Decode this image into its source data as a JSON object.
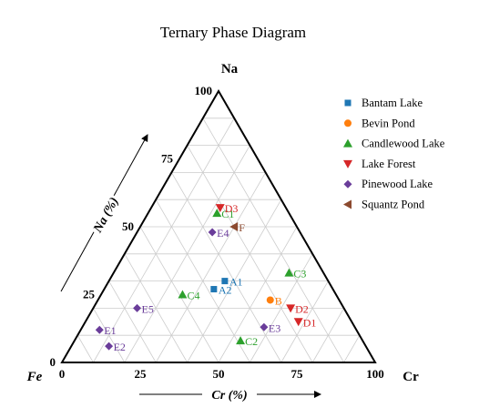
{
  "chart_data": {
    "type": "scatter",
    "subtype": "ternary",
    "title": "Ternary Phase Diagram",
    "corner_labels": {
      "top": "Na",
      "left": "Fe",
      "right": "Cr"
    },
    "axis_titles": {
      "left": "Na (%)",
      "bottom": "Cr (%)"
    },
    "left_ticks": [
      "0",
      "25",
      "50",
      "75",
      "100"
    ],
    "bottom_ticks": [
      "0",
      "25",
      "50",
      "75",
      "100"
    ],
    "grid": true,
    "grid_step": 10,
    "legend_position": "top-right",
    "series": [
      {
        "name": "Bantam Lake",
        "color": "#1f77b4",
        "marker": "square",
        "points": [
          {
            "label": "A1",
            "cr": 37,
            "na": 30
          },
          {
            "label": "A2",
            "cr": 35,
            "na": 27
          }
        ]
      },
      {
        "name": "Bevin Pond",
        "color": "#ff7f0e",
        "marker": "circle",
        "points": [
          {
            "label": "B",
            "cr": 55,
            "na": 23
          }
        ]
      },
      {
        "name": "Candlewood Lake",
        "color": "#2ca02c",
        "marker": "triangle-up",
        "points": [
          {
            "label": "C1",
            "cr": 22,
            "na": 55
          },
          {
            "label": "C2",
            "cr": 53,
            "na": 8
          },
          {
            "label": "C3",
            "cr": 56,
            "na": 33
          },
          {
            "label": "C4",
            "cr": 26,
            "na": 25
          }
        ]
      },
      {
        "name": "Lake Forest",
        "color": "#d62728",
        "marker": "triangle-down",
        "points": [
          {
            "label": "D1",
            "cr": 68,
            "na": 15
          },
          {
            "label": "D2",
            "cr": 63,
            "na": 20
          },
          {
            "label": "D3",
            "cr": 22,
            "na": 57
          }
        ]
      },
      {
        "name": "Pinewood Lake",
        "color": "#6a3d9a",
        "marker": "diamond",
        "points": [
          {
            "label": "E1",
            "cr": 6,
            "na": 12
          },
          {
            "label": "E2",
            "cr": 12,
            "na": 6
          },
          {
            "label": "E3",
            "cr": 58,
            "na": 13
          },
          {
            "label": "E4",
            "cr": 24,
            "na": 48
          },
          {
            "label": "E5",
            "cr": 14,
            "na": 20
          }
        ]
      },
      {
        "name": "Squantz Pond",
        "color": "#8c4a2f",
        "marker": "triangle-left",
        "points": [
          {
            "label": "F",
            "cr": 30,
            "na": 50
          }
        ]
      }
    ]
  }
}
